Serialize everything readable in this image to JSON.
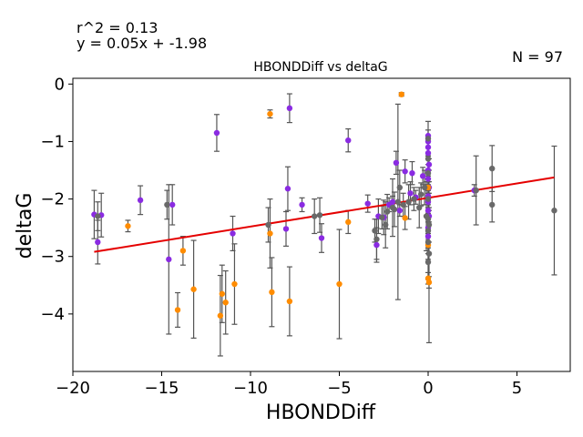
{
  "chart_data": {
    "type": "scatter",
    "title": "HBONDDiff vs deltaG",
    "xlabel": "HBONDDiff",
    "ylabel": "deltaG",
    "xlim": [
      -20,
      8
    ],
    "ylim": [
      -5,
      0.1
    ],
    "xticks": [
      -20,
      -15,
      -10,
      -5,
      0,
      5
    ],
    "yticks": [
      0,
      -1,
      -2,
      -3,
      -4
    ],
    "xtick_labels": [
      "−20",
      "−15",
      "−10",
      "−5",
      "0",
      "5"
    ],
    "ytick_labels": [
      "0",
      "−1",
      "−2",
      "−3",
      "−4"
    ],
    "annotations": {
      "r2": "r^2 = 0.13",
      "equation": "y = 0.05x + -1.98",
      "n": "N = 97"
    },
    "fit_line": {
      "slope": 0.05,
      "intercept": -1.98,
      "x": [
        -18.8,
        7.1
      ],
      "color": "#e50000"
    },
    "errorbar_color": "#555555",
    "series": [
      {
        "color": "#8a2be2",
        "points": [
          {
            "x": -18.8,
            "y": -2.27,
            "err": 0.42
          },
          {
            "x": -18.6,
            "y": -2.75,
            "err": 0.38
          },
          {
            "x": -18.4,
            "y": -2.28,
            "err": 0.38
          },
          {
            "x": -16.2,
            "y": -2.02,
            "err": 0.25
          },
          {
            "x": -14.6,
            "y": -3.05,
            "err": 1.3
          },
          {
            "x": -14.4,
            "y": -2.1,
            "err": 0.35
          },
          {
            "x": -11.9,
            "y": -0.85,
            "err": 0.32
          },
          {
            "x": -11.0,
            "y": -2.6,
            "err": 0.3
          },
          {
            "x": -8.0,
            "y": -2.52,
            "err": 0.3
          },
          {
            "x": -7.8,
            "y": -0.42,
            "err": 0.25
          },
          {
            "x": -7.9,
            "y": -1.82,
            "err": 0.38
          },
          {
            "x": -7.1,
            "y": -2.1,
            "err": 0.12
          },
          {
            "x": -6.0,
            "y": -2.68,
            "err": 0.25
          },
          {
            "x": -4.5,
            "y": -0.98,
            "err": 0.2
          },
          {
            "x": -3.4,
            "y": -2.08,
            "err": 0.15
          },
          {
            "x": -2.9,
            "y": -2.8,
            "err": 0.3
          },
          {
            "x": -2.8,
            "y": -2.3,
            "err": 0.3
          },
          {
            "x": -2.5,
            "y": -2.32,
            "err": 0.3
          },
          {
            "x": -2.2,
            "y": -2.1,
            "err": 0.12
          },
          {
            "x": -1.8,
            "y": -1.37,
            "err": 0.2
          },
          {
            "x": -1.3,
            "y": -1.52,
            "err": 0.2
          },
          {
            "x": -0.9,
            "y": -1.55,
            "err": 0.2
          },
          {
            "x": -1.0,
            "y": -1.9,
            "err": 0.2
          },
          {
            "x": -0.7,
            "y": -1.97,
            "err": 0.12
          },
          {
            "x": -0.3,
            "y": -1.6,
            "err": 0.15
          },
          {
            "x": 0.0,
            "y": -0.9,
            "err": 0.1
          },
          {
            "x": 0.0,
            "y": -1.0,
            "err": 0.1
          },
          {
            "x": 0.0,
            "y": -1.1,
            "err": 0.1
          },
          {
            "x": 0.0,
            "y": -1.2,
            "err": 0.1
          },
          {
            "x": 0.05,
            "y": -1.4,
            "err": 0.1
          },
          {
            "x": 0.0,
            "y": -1.5,
            "err": 0.1
          },
          {
            "x": 0.0,
            "y": -1.65,
            "err": 0.1
          },
          {
            "x": 0.05,
            "y": -1.8,
            "err": 0.1
          },
          {
            "x": 0.0,
            "y": -1.95,
            "err": 0.1
          },
          {
            "x": 0.0,
            "y": -2.05,
            "err": 0.1
          },
          {
            "x": 0.0,
            "y": -2.2,
            "err": 0.1
          },
          {
            "x": 0.05,
            "y": -2.3,
            "err": 0.1
          },
          {
            "x": 0.0,
            "y": -2.5,
            "err": 0.1
          },
          {
            "x": 0.0,
            "y": -2.65,
            "err": 0.1
          },
          {
            "x": 2.6,
            "y": -1.85,
            "err": 0.1
          },
          {
            "x": -1.6,
            "y": -2.2,
            "err": 0.1
          },
          {
            "x": -2.0,
            "y": -2.05,
            "err": 0.1
          }
        ]
      },
      {
        "color": "#ff8c00",
        "points": [
          {
            "x": -16.9,
            "y": -2.47,
            "err": 0.1
          },
          {
            "x": -14.1,
            "y": -3.93,
            "err": 0.3
          },
          {
            "x": -13.8,
            "y": -2.9,
            "err": 0.25
          },
          {
            "x": -13.2,
            "y": -3.57,
            "err": 0.85
          },
          {
            "x": -11.7,
            "y": -4.03,
            "err": 0.7
          },
          {
            "x": -11.6,
            "y": -3.65,
            "err": 0.5
          },
          {
            "x": -11.4,
            "y": -3.8,
            "err": 0.55
          },
          {
            "x": -10.9,
            "y": -3.48,
            "err": 0.7
          },
          {
            "x": -8.9,
            "y": -0.52,
            "err": 0.07
          },
          {
            "x": -8.9,
            "y": -2.6,
            "err": 0.6
          },
          {
            "x": -8.8,
            "y": -3.62,
            "err": 0.6
          },
          {
            "x": -7.8,
            "y": -3.78,
            "err": 0.6
          },
          {
            "x": -5.0,
            "y": -3.48,
            "err": 0.95
          },
          {
            "x": -4.5,
            "y": -2.4,
            "err": 0.2
          },
          {
            "x": -1.3,
            "y": -2.33,
            "err": 0.2
          },
          {
            "x": -1.5,
            "y": -0.18,
            "err": 0.03
          },
          {
            "x": 0.0,
            "y": -2.8,
            "err": 0.15
          },
          {
            "x": 0.0,
            "y": -3.38,
            "err": 0.1
          },
          {
            "x": 0.05,
            "y": -3.45,
            "err": 0.1
          },
          {
            "x": 0.0,
            "y": -1.8,
            "err": 0.1
          }
        ]
      },
      {
        "color": "#696969",
        "points": [
          {
            "x": -18.6,
            "y": -2.3,
            "err": 0.25
          },
          {
            "x": -14.7,
            "y": -2.1,
            "err": 0.25
          },
          {
            "x": -9.0,
            "y": -2.45,
            "err": 0.3
          },
          {
            "x": -6.4,
            "y": -2.3,
            "err": 0.3
          },
          {
            "x": -6.1,
            "y": -2.28,
            "err": 0.3
          },
          {
            "x": -2.9,
            "y": -2.7,
            "err": 0.35
          },
          {
            "x": -2.4,
            "y": -2.45,
            "err": 0.4
          },
          {
            "x": -2.0,
            "y": -2.15,
            "err": 0.5
          },
          {
            "x": -1.7,
            "y": -2.05,
            "err": 1.7
          },
          {
            "x": -0.5,
            "y": -2.15,
            "err": 0.35
          },
          {
            "x": 0.0,
            "y": -0.95,
            "err": 0.3
          },
          {
            "x": 0.0,
            "y": -2.35,
            "err": 0.7
          },
          {
            "x": 0.05,
            "y": -2.95,
            "err": 1.55
          },
          {
            "x": 2.7,
            "y": -1.85,
            "err": 0.6
          },
          {
            "x": 3.6,
            "y": -1.47,
            "err": 0.4
          },
          {
            "x": 3.6,
            "y": -2.1,
            "err": 0.3
          },
          {
            "x": 7.1,
            "y": -2.2,
            "err": 1.12
          },
          {
            "x": -1.1,
            "y": -2.05,
            "err": 0.3
          },
          {
            "x": -0.2,
            "y": -1.8,
            "err": 0.3
          },
          {
            "x": 0.0,
            "y": -2.55,
            "err": 0.3
          },
          {
            "x": 0.0,
            "y": -3.1,
            "err": 0.3
          },
          {
            "x": -0.4,
            "y": -1.92,
            "err": 0.2
          },
          {
            "x": -2.6,
            "y": -2.32,
            "err": 0.2
          },
          {
            "x": -0.1,
            "y": -2.3,
            "err": 0.6
          },
          {
            "x": -1.9,
            "y": -2.18,
            "err": 0.3
          },
          {
            "x": -2.3,
            "y": -2.22,
            "err": 0.3
          },
          {
            "x": -1.6,
            "y": -1.8,
            "err": 0.3
          },
          {
            "x": 0.0,
            "y": -1.3,
            "err": 0.2
          },
          {
            "x": 0.0,
            "y": -1.55,
            "err": 0.3
          },
          {
            "x": 0.0,
            "y": -2.0,
            "err": 0.3
          },
          {
            "x": 0.05,
            "y": -2.45,
            "err": 0.3
          },
          {
            "x": -3.0,
            "y": -2.55,
            "err": 0.2
          },
          {
            "x": -0.8,
            "y": -2.0,
            "err": 0.2
          },
          {
            "x": -1.4,
            "y": -2.1,
            "err": 0.2
          },
          {
            "x": 0.0,
            "y": -2.75,
            "err": 0.2
          }
        ]
      }
    ]
  }
}
